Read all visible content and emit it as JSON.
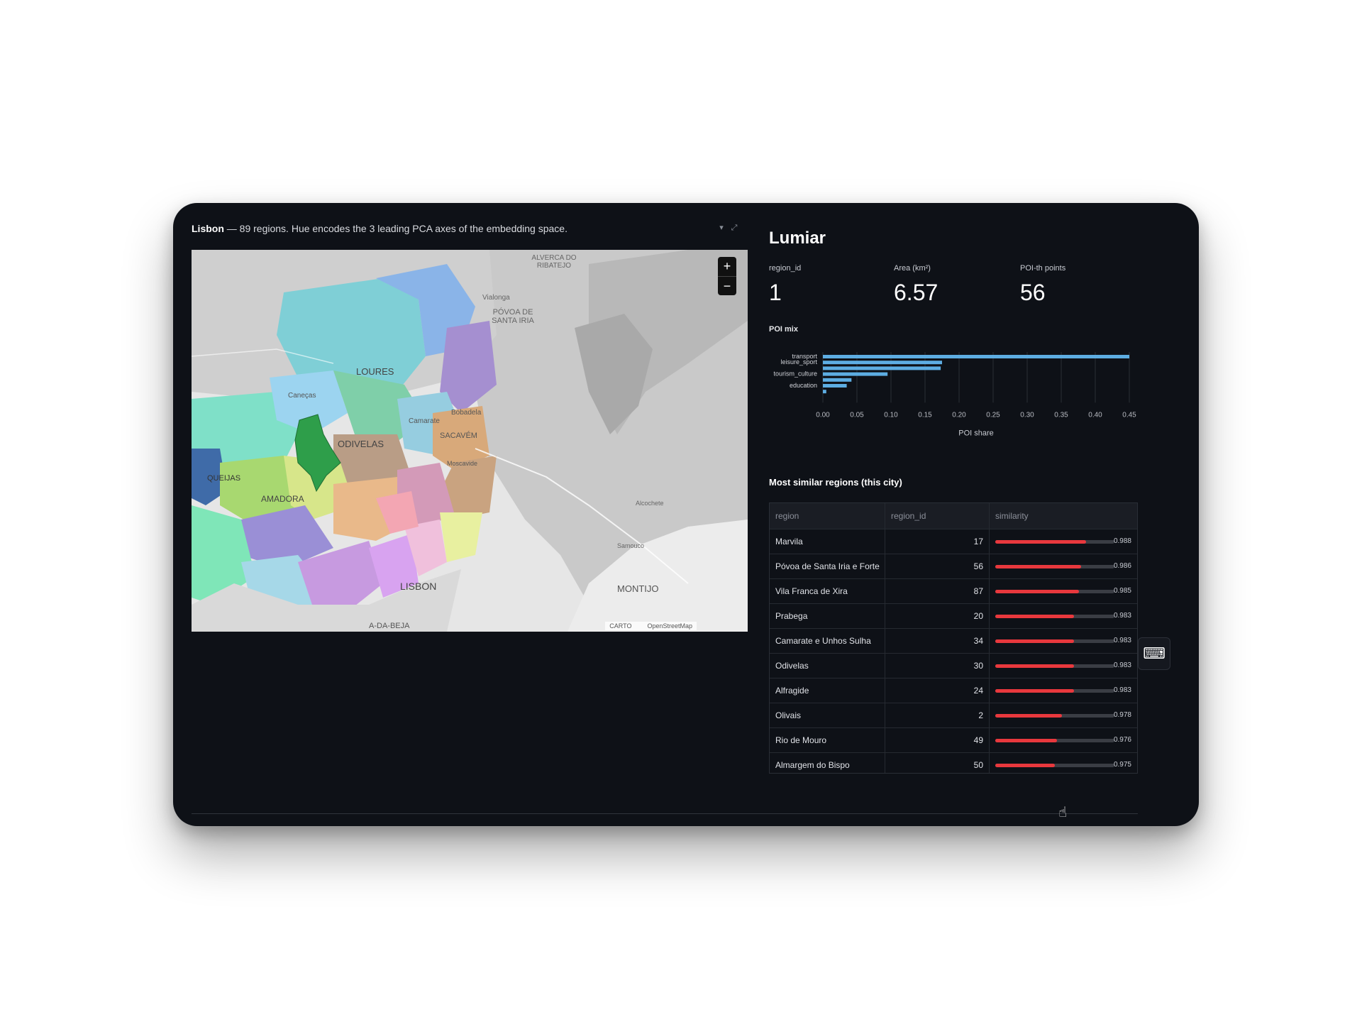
{
  "map": {
    "caption_bold": "Lisbon",
    "caption_rest": " — 89 regions. Hue encodes the 3 leading PCA axes of the embedding space.",
    "zoom_in": "+",
    "zoom_out": "−",
    "attribution": [
      "CARTO",
      "OpenStreetMap"
    ],
    "place_labels": [
      {
        "text": "LOURES"
      },
      {
        "text": "ODIVELAS"
      },
      {
        "text": "AMADORA"
      },
      {
        "text": "LISBON"
      },
      {
        "text": "MONTIJO"
      },
      {
        "text": "ALVERCA DO RIBATEJO"
      },
      {
        "text": "PÓVOA DE SANTA IRIA"
      },
      {
        "text": "SACAVÉM"
      },
      {
        "text": "QUEIJAS"
      },
      {
        "text": "Caneças"
      },
      {
        "text": "Camarate"
      },
      {
        "text": "Bobadela"
      },
      {
        "text": "Vialonga"
      },
      {
        "text": "Moscavide"
      },
      {
        "text": "Samouco"
      },
      {
        "text": "Alcochete"
      },
      {
        "text": "A-DA-BEJA"
      }
    ],
    "colors": {
      "highlight": "#2e9e4a",
      "water": "#c8c8c8",
      "land": "#e4e4e4"
    }
  },
  "region": {
    "name": "Lumiar",
    "metrics": [
      {
        "label": "region_id",
        "value": "1"
      },
      {
        "label": "Area (km²)",
        "value": "6.57"
      },
      {
        "label": "POI-th points",
        "value": "56"
      }
    ]
  },
  "poi": {
    "label": "POI mix"
  },
  "chart_data": {
    "type": "bar",
    "orientation": "horizontal",
    "categories": [
      "transport",
      "leisure_sport",
      "",
      "tourism_culture",
      "",
      "education",
      ""
    ],
    "values": [
      0.45,
      0.175,
      0.173,
      0.095,
      0.042,
      0.035,
      0.005
    ],
    "xlabel": "POI share",
    "xticks": [
      "0.00",
      "0.05",
      "0.10",
      "0.15",
      "0.20",
      "0.25",
      "0.30",
      "0.35",
      "0.40",
      "0.45"
    ],
    "xlim": [
      0,
      0.45
    ],
    "color": "#5dade2",
    "grid": true
  },
  "similar": {
    "title": "Most similar regions (this city)",
    "columns": [
      "region",
      "region_id",
      "similarity"
    ],
    "rows": [
      {
        "region": "Marvila",
        "region_id": "17",
        "similarity": 0.988,
        "sim_text": "0.988"
      },
      {
        "region": "Póvoa de Santa Iria e Forte",
        "region_id": "56",
        "similarity": 0.986,
        "sim_text": "0.986"
      },
      {
        "region": "Vila Franca de Xira",
        "region_id": "87",
        "similarity": 0.985,
        "sim_text": "0.985"
      },
      {
        "region": "Prabega",
        "region_id": "20",
        "similarity": 0.983,
        "sim_text": "0.983"
      },
      {
        "region": "Camarate e Unhos Sulha",
        "region_id": "34",
        "similarity": 0.983,
        "sim_text": "0.983"
      },
      {
        "region": "Odivelas",
        "region_id": "30",
        "similarity": 0.983,
        "sim_text": "0.983"
      },
      {
        "region": "Alfragide",
        "region_id": "24",
        "similarity": 0.983,
        "sim_text": "0.983"
      },
      {
        "region": "Olivais",
        "region_id": "2",
        "similarity": 0.978,
        "sim_text": "0.978"
      },
      {
        "region": "Rio de Mouro",
        "region_id": "49",
        "similarity": 0.976,
        "sim_text": "0.976"
      },
      {
        "region": "Almargem do Bispo",
        "region_id": "50",
        "similarity": 0.975,
        "sim_text": "0.975"
      }
    ],
    "bar_color": "#e8383d"
  },
  "side_button_icon": "terminal-icon"
}
